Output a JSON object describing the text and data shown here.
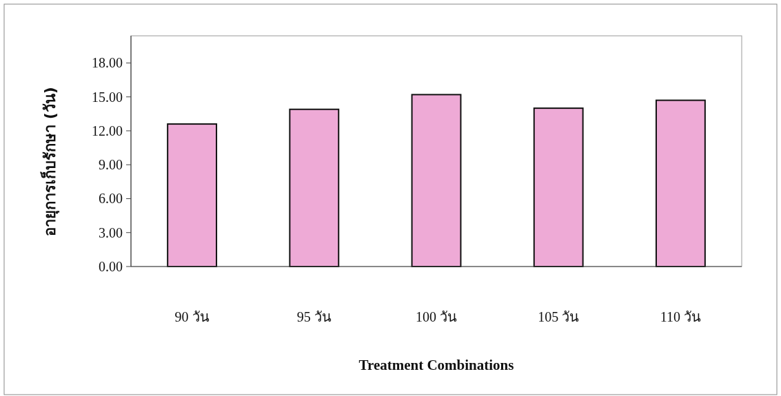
{
  "chart_data": {
    "type": "bar",
    "categories": [
      "90 วัน",
      "95 วัน",
      "100 วัน",
      "105 วัน",
      "110 วัน"
    ],
    "values": [
      12.6,
      13.9,
      15.2,
      14.0,
      14.7
    ],
    "color": "#eeaad6",
    "xlabel": "Treatment Combinations",
    "ylabel": "อายุการเก็บรักษา (วัน)",
    "ylim": [
      0,
      20.4
    ],
    "yticks": [
      {
        "value": 0,
        "label": "0.00"
      },
      {
        "value": 3,
        "label": "3.00"
      },
      {
        "value": 6,
        "label": "6.00"
      },
      {
        "value": 9,
        "label": "9.00"
      },
      {
        "value": 12,
        "label": "12.00"
      },
      {
        "value": 15,
        "label": "15.00"
      },
      {
        "value": 18,
        "label": "18.00"
      }
    ]
  }
}
